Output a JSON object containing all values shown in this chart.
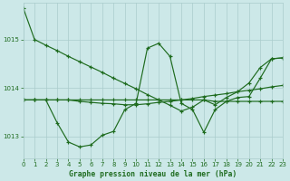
{
  "bg_color": "#cce8e8",
  "grid_color": "#aacccc",
  "line_color": "#1e6b1e",
  "xlabel": "Graphe pression niveau de la mer (hPa)",
  "xlim": [
    0,
    23
  ],
  "ylim": [
    1012.55,
    1015.75
  ],
  "yticks": [
    1013,
    1014,
    1015
  ],
  "xticks": [
    0,
    1,
    2,
    3,
    4,
    5,
    6,
    7,
    8,
    9,
    10,
    11,
    12,
    13,
    14,
    15,
    16,
    17,
    18,
    19,
    20,
    21,
    22,
    23
  ],
  "s1": [
    1015.65,
    1015.0,
    1014.88,
    1014.77,
    1014.65,
    1014.54,
    1014.43,
    1014.32,
    1014.2,
    1014.09,
    1013.98,
    1013.86,
    1013.75,
    1013.64,
    1013.52,
    1013.6,
    1013.75,
    1013.65,
    1013.8,
    1013.92,
    1014.1,
    1014.42,
    1014.6,
    1014.62
  ],
  "s2": [
    1013.75,
    1013.75,
    1013.75,
    1013.28,
    1012.88,
    1012.78,
    1012.82,
    1013.02,
    1013.1,
    1013.55,
    1013.68,
    1014.82,
    1014.92,
    1014.65,
    1013.68,
    1013.55,
    1013.08,
    1013.55,
    1013.72,
    1013.8,
    1013.82,
    1014.2,
    1014.6,
    1014.62
  ],
  "s3": [
    1013.75,
    1013.75,
    1013.75,
    1013.75,
    1013.75,
    1013.72,
    1013.7,
    1013.68,
    1013.67,
    1013.65,
    1013.65,
    1013.67,
    1013.7,
    1013.72,
    1013.75,
    1013.78,
    1013.82,
    1013.85,
    1013.88,
    1013.92,
    1013.95,
    1013.98,
    1014.02,
    1014.05
  ],
  "s4": [
    1013.75,
    1013.75,
    1013.75,
    1013.75,
    1013.75,
    1013.75,
    1013.75,
    1013.75,
    1013.75,
    1013.75,
    1013.75,
    1013.75,
    1013.75,
    1013.75,
    1013.75,
    1013.75,
    1013.75,
    1013.72,
    1013.72,
    1013.72,
    1013.72,
    1013.72,
    1013.72,
    1013.72
  ]
}
